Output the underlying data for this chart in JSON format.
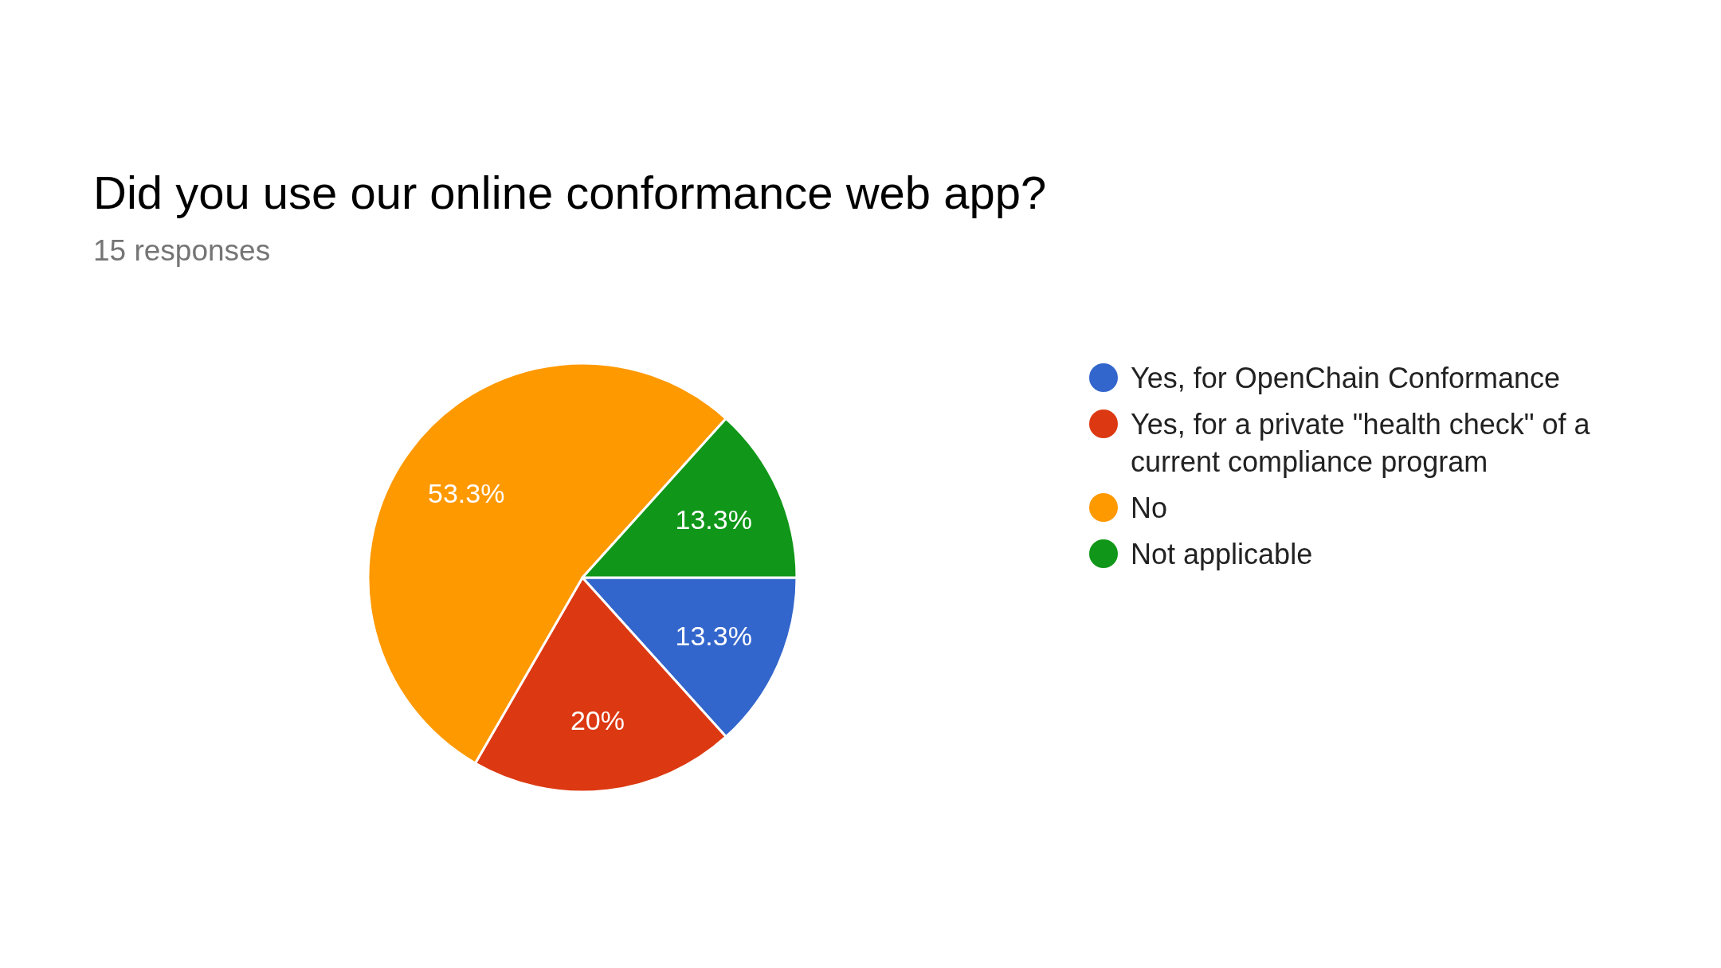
{
  "chart_data": {
    "type": "pie",
    "title": "Did you use our online conformance web app?",
    "subtitle": "15 responses",
    "categories": [
      "Yes, for OpenChain Conformance",
      "Yes, for a private \"health check\" of a current compliance program",
      "No",
      "Not applicable"
    ],
    "values": [
      13.3,
      20,
      53.3,
      13.3
    ],
    "colors": [
      "#3366cc",
      "#dc3912",
      "#ff9900",
      "#109618"
    ],
    "value_labels": [
      "13.3%",
      "20%",
      "53.3%",
      "13.3%"
    ],
    "legend": "right"
  }
}
